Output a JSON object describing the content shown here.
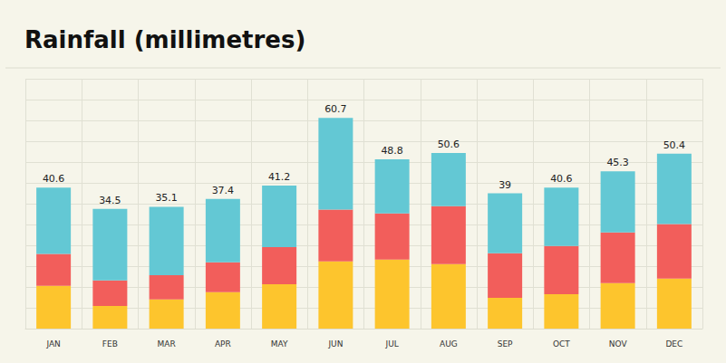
{
  "chart_data": {
    "type": "bar",
    "title": "Rainfall (millimetres)",
    "categories": [
      "JAN",
      "FEB",
      "MAR",
      "APR",
      "MAY",
      "JUN",
      "JUL",
      "AUG",
      "SEP",
      "OCT",
      "NOV",
      "DEC"
    ],
    "series": [
      {
        "color": "#fdc52d",
        "values": [
          12.3,
          6.5,
          8.4,
          10.5,
          12.8,
          19.4,
          19.9,
          18.6,
          8.9,
          9.9,
          13.1,
          14.4
        ]
      },
      {
        "color": "#f25e5b",
        "values": [
          9.2,
          7.4,
          7.0,
          8.6,
          10.7,
          14.9,
          13.3,
          16.7,
          12.8,
          13.9,
          14.6,
          15.7
        ]
      },
      {
        "color": "#63c8d4",
        "values": [
          19.1,
          20.6,
          19.7,
          18.3,
          17.7,
          26.4,
          15.6,
          15.3,
          17.3,
          16.8,
          17.6,
          20.3
        ]
      }
    ],
    "totals": [
      40.6,
      34.5,
      35.1,
      37.4,
      41.2,
      60.7,
      48.8,
      50.6,
      39,
      40.6,
      45.3,
      50.4
    ],
    "stacked": true,
    "ylim": [
      0,
      72
    ],
    "yticks": [
      0,
      6,
      12,
      18,
      24,
      30,
      36,
      42,
      48,
      54,
      60,
      66,
      72
    ],
    "grid": true,
    "tick_labels": "x"
  }
}
